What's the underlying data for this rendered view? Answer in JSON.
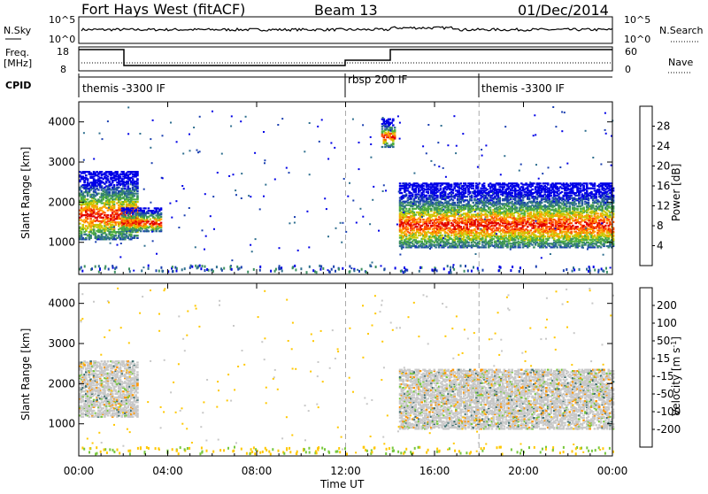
{
  "header": {
    "station": "Fort Hays West (fitACF)",
    "beam": "Beam 13",
    "date": "01/Dec/2014"
  },
  "status_panel": {
    "nsky_label": "N.Sky",
    "nsky_ticks": [
      "10^5",
      "10^0"
    ],
    "nsearch_label": "N.Search",
    "nsearch_ticks": [
      "10^5",
      "10^0"
    ],
    "freq_label_1": "Freq.",
    "freq_label_2": "[MHz]",
    "freq_ticks": [
      "18",
      "8"
    ],
    "nave_label": "Nave",
    "nave_ticks": [
      "60",
      "0"
    ],
    "cpid_label": "CPID",
    "modes": [
      {
        "name": "themis -3300 IF",
        "start_hour": 0
      },
      {
        "name": "rbsp 200 IF",
        "start_hour": 12
      },
      {
        "name": "themis -3300 IF",
        "start_hour": 18
      }
    ]
  },
  "axes": {
    "x_label": "Time UT",
    "x_ticks": [
      "00:00",
      "04:00",
      "08:00",
      "12:00",
      "16:00",
      "20:00",
      "00:00"
    ],
    "y_label": "Slant Range [km]",
    "y_ticks": [
      "1000",
      "2000",
      "3000",
      "4000"
    ]
  },
  "chart_data": [
    {
      "type": "heatmap",
      "name": "power",
      "xlabel": "Time UT",
      "ylabel": "Slant Range [km]",
      "xlim": [
        0,
        24
      ],
      "ylim": [
        200,
        4500
      ],
      "colorbar_label": "Power [dB]",
      "colorbar_ticks": [
        4,
        8,
        12,
        16,
        20,
        24,
        28
      ],
      "colorbar_colors": [
        "#0000e6",
        "#1a3fb0",
        "#2f6f8f",
        "#3c8f60",
        "#50b040",
        "#c8c800",
        "#ffa000",
        "#ff5000",
        "#e00000"
      ],
      "regions": [
        {
          "t0": 0.0,
          "t1": 2.6,
          "r0": 1100,
          "r1": 2800,
          "level": 16
        },
        {
          "t0": 1.9,
          "t1": 3.7,
          "r0": 1300,
          "r1": 1900,
          "level": 12
        },
        {
          "t0": 13.6,
          "t1": 14.2,
          "r0": 3400,
          "r1": 4100,
          "level": 20
        },
        {
          "t0": 14.4,
          "t1": 24.0,
          "r0": 900,
          "r1": 2500,
          "level": 16
        }
      ]
    },
    {
      "type": "heatmap",
      "name": "velocity",
      "xlabel": "Time UT",
      "ylabel": "Slant Range [km]",
      "xlim": [
        0,
        24
      ],
      "ylim": [
        200,
        4500
      ],
      "colorbar_label": "Velocity [m s-1]",
      "colorbar_ticks": [
        200,
        100,
        50,
        15,
        -15,
        -50,
        -100,
        -200
      ],
      "colorbar_colors": [
        "#1e3cb4",
        "#3c6e6e",
        "#3ca03c",
        "#78c83c",
        "#c8c8c8",
        "#ffc800",
        "#ff9600",
        "#ff6400",
        "#e60000"
      ],
      "regions": [
        {
          "t0": 0.0,
          "t1": 2.6,
          "r0": 1200,
          "r1": 2600,
          "level": 0
        },
        {
          "t0": 14.4,
          "t1": 24.0,
          "r0": 900,
          "r1": 2400,
          "level": 0
        }
      ]
    }
  ]
}
